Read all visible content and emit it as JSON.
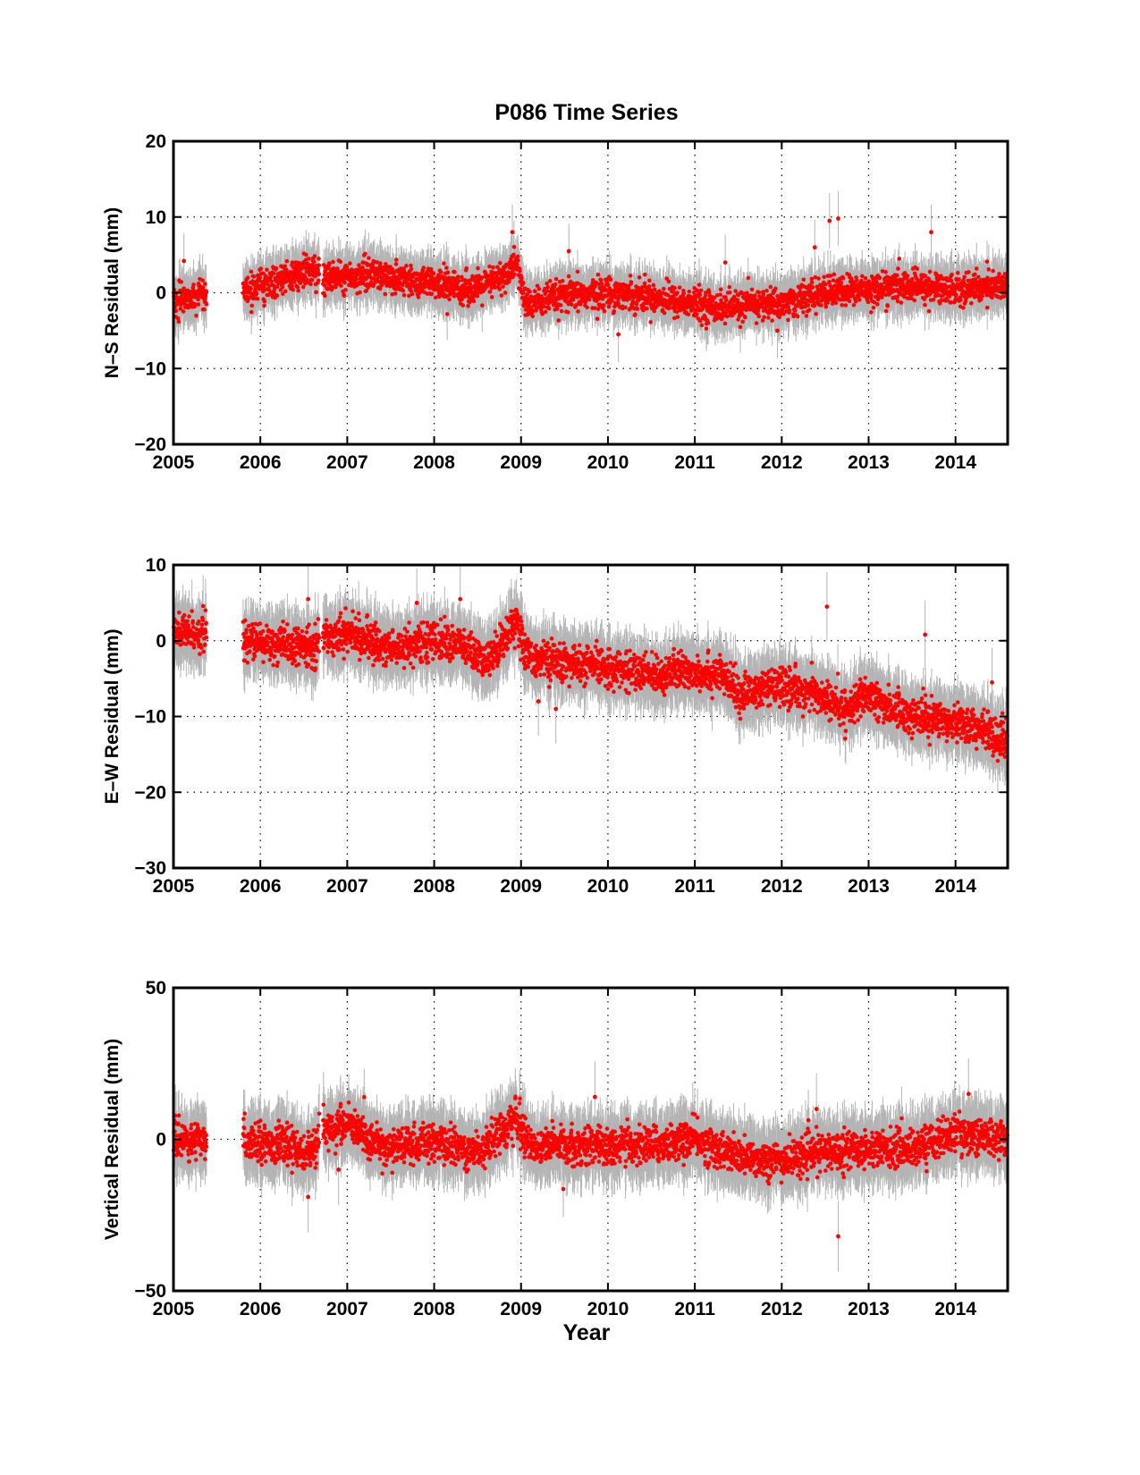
{
  "chart_data": {
    "type": "scatter",
    "title": "P086 Time Series",
    "xlabel": "Year",
    "xlim": [
      2005,
      2014.6
    ],
    "xticks": [
      2005,
      2006,
      2007,
      2008,
      2009,
      2010,
      2011,
      2012,
      2013,
      2014
    ],
    "grid": true,
    "marker_color": "#ff0000",
    "errorbar_color": "#b4b4b4",
    "data_gaps": [
      [
        2005.38,
        2005.8
      ],
      [
        2006.68,
        2006.72
      ]
    ],
    "panels": [
      {
        "component": "N-S",
        "ylabel": "N–S Residual (mm)",
        "ylim": [
          -20,
          20
        ],
        "yticks": [
          -20,
          -10,
          0,
          10,
          20
        ],
        "ytick_labels": [
          "−20",
          "−10",
          "0",
          "10",
          "20"
        ],
        "trend_x": [
          2005.0,
          2005.35,
          2005.8,
          2006.3,
          2006.6,
          2006.72,
          2007.3,
          2008.0,
          2008.5,
          2008.85,
          2008.95,
          2009.05,
          2009.5,
          2010.0,
          2010.5,
          2011.0,
          2011.3,
          2011.7,
          2012.0,
          2012.5,
          2013.0,
          2013.5,
          2014.0,
          2014.58
        ],
        "trend_y": [
          -1.0,
          -0.5,
          0.0,
          2.0,
          3.0,
          2.0,
          2.5,
          1.0,
          0.5,
          2.5,
          4.0,
          -1.5,
          -0.5,
          0.0,
          -0.5,
          -1.5,
          -2.0,
          -1.5,
          -1.5,
          0.0,
          0.5,
          0.8,
          0.5,
          1.0
        ],
        "sigma": 1.0,
        "errorbar": 2.8,
        "outliers": [
          [
            2005.12,
            4.2
          ],
          [
            2008.9,
            8.0
          ],
          [
            2009.55,
            5.5
          ],
          [
            2011.35,
            4.0
          ],
          [
            2012.38,
            6.0
          ],
          [
            2012.55,
            9.5
          ],
          [
            2012.65,
            9.8
          ],
          [
            2013.72,
            8.0
          ],
          [
            2010.12,
            -5.5
          ],
          [
            2011.95,
            -5.0
          ]
        ]
      },
      {
        "component": "E-W",
        "ylabel": "E–W Residual (mm)",
        "ylim": [
          -30,
          10
        ],
        "yticks": [
          -30,
          -20,
          -10,
          0,
          10
        ],
        "ytick_labels": [
          "−30",
          "−20",
          "−10",
          "0",
          "10"
        ],
        "trend_x": [
          2005.0,
          2005.35,
          2005.8,
          2006.6,
          2006.72,
          2007.0,
          2007.5,
          2008.0,
          2008.3,
          2008.6,
          2008.85,
          2008.95,
          2009.05,
          2009.5,
          2010.0,
          2010.5,
          2011.0,
          2011.3,
          2011.5,
          2012.0,
          2012.4,
          2012.7,
          2013.0,
          2013.5,
          2014.0,
          2014.58
        ],
        "trend_y": [
          1.0,
          1.0,
          0.0,
          -1.0,
          0.5,
          1.0,
          -1.0,
          0.0,
          -0.5,
          -3.0,
          1.0,
          3.0,
          -2.0,
          -3.0,
          -3.5,
          -4.5,
          -4.0,
          -4.5,
          -7.0,
          -6.0,
          -7.0,
          -9.0,
          -7.5,
          -10.0,
          -10.5,
          -13.0
        ],
        "sigma": 1.2,
        "errorbar": 3.5,
        "outliers": [
          [
            2006.55,
            5.5
          ],
          [
            2007.8,
            5.0
          ],
          [
            2008.3,
            5.5
          ],
          [
            2012.52,
            4.5
          ],
          [
            2013.65,
            0.8
          ],
          [
            2014.42,
            -5.5
          ],
          [
            2009.2,
            -8.0
          ],
          [
            2009.4,
            -9.0
          ]
        ]
      },
      {
        "component": "Vertical",
        "ylabel": "Vertical Residual (mm)",
        "ylim": [
          -50,
          50
        ],
        "yticks": [
          -50,
          0,
          50
        ],
        "ytick_labels": [
          "−50",
          "0",
          "50"
        ],
        "trend_x": [
          2005.0,
          2005.35,
          2005.8,
          2006.3,
          2006.6,
          2006.72,
          2007.0,
          2007.4,
          2008.0,
          2008.5,
          2008.95,
          2009.1,
          2010.0,
          2010.5,
          2011.0,
          2011.5,
          2012.0,
          2012.5,
          2013.0,
          2013.5,
          2014.0,
          2014.58
        ],
        "trend_y": [
          0.0,
          -1.0,
          0.0,
          -2.0,
          -5.0,
          3.0,
          5.0,
          -3.0,
          -1.0,
          -4.0,
          7.0,
          -2.0,
          -2.0,
          -2.0,
          0.0,
          -6.0,
          -7.0,
          -4.0,
          -3.0,
          -3.0,
          2.0,
          0.0
        ],
        "sigma": 3.0,
        "errorbar": 9.0,
        "outliers": [
          [
            2012.65,
            -32.0
          ],
          [
            2009.85,
            14.0
          ],
          [
            2014.15,
            15.0
          ],
          [
            2006.55,
            -19.0
          ],
          [
            2006.9,
            -10.0
          ],
          [
            2012.4,
            10.0
          ]
        ]
      }
    ]
  }
}
